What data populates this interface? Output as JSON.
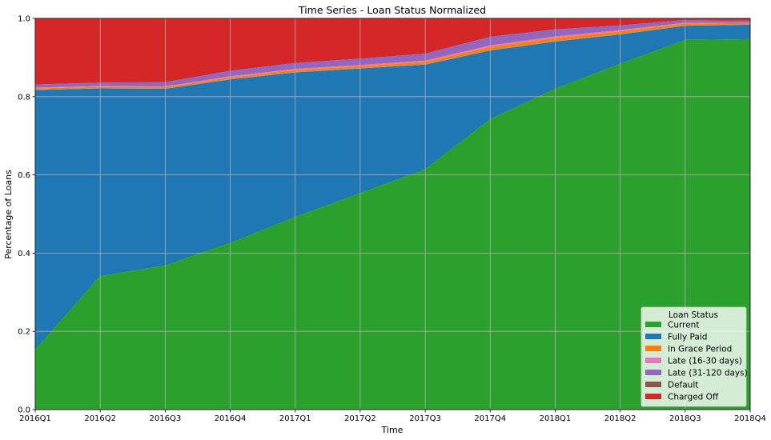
{
  "chart_data": {
    "type": "area",
    "stacked": true,
    "title": "Time Series - Loan Status Normalized",
    "xlabel": "Time",
    "ylabel": "Percentage of Loans",
    "ylim": [
      0,
      1.0
    ],
    "yticks": [
      "0.0",
      "0.2",
      "0.4",
      "0.6",
      "0.8",
      "1.0"
    ],
    "grid": true,
    "legend_title": "Loan Status",
    "legend_position": "lower-right",
    "categories": [
      "2016Q1",
      "2016Q2",
      "2016Q3",
      "2016Q4",
      "2017Q1",
      "2017Q2",
      "2017Q3",
      "2017Q4",
      "2018Q1",
      "2018Q2",
      "2018Q3",
      "2018Q4"
    ],
    "series": [
      {
        "name": "Current",
        "color": "#2ca02c",
        "values": [
          0.153,
          0.341,
          0.368,
          0.426,
          0.492,
          0.553,
          0.614,
          0.742,
          0.82,
          0.884,
          0.945,
          0.947
        ]
      },
      {
        "name": "Fully Paid",
        "color": "#1f77b4",
        "values": [
          0.664,
          0.48,
          0.452,
          0.418,
          0.37,
          0.319,
          0.268,
          0.176,
          0.121,
          0.075,
          0.036,
          0.037
        ]
      },
      {
        "name": "In Grace Period",
        "color": "#ff7f0e",
        "values": [
          0.004,
          0.004,
          0.004,
          0.005,
          0.006,
          0.006,
          0.007,
          0.009,
          0.009,
          0.008,
          0.006,
          0.004
        ]
      },
      {
        "name": "Late (16-30 days)",
        "color": "#e377c2",
        "values": [
          0.002,
          0.002,
          0.002,
          0.003,
          0.003,
          0.003,
          0.003,
          0.004,
          0.004,
          0.003,
          0.002,
          0.001
        ]
      },
      {
        "name": "Late (31-120 days)",
        "color": "#9467bd",
        "values": [
          0.008,
          0.009,
          0.011,
          0.014,
          0.015,
          0.016,
          0.018,
          0.022,
          0.018,
          0.012,
          0.007,
          0.005
        ]
      },
      {
        "name": "Default",
        "color": "#8c564b",
        "values": [
          0.0,
          0.0,
          0.0,
          0.0,
          0.0,
          0.0,
          0.0,
          0.0,
          0.0,
          0.0,
          0.0,
          0.0
        ]
      },
      {
        "name": "Charged Off",
        "color": "#d62728",
        "values": [
          0.169,
          0.164,
          0.163,
          0.134,
          0.114,
          0.103,
          0.09,
          0.047,
          0.028,
          0.018,
          0.004,
          0.006
        ]
      }
    ]
  }
}
